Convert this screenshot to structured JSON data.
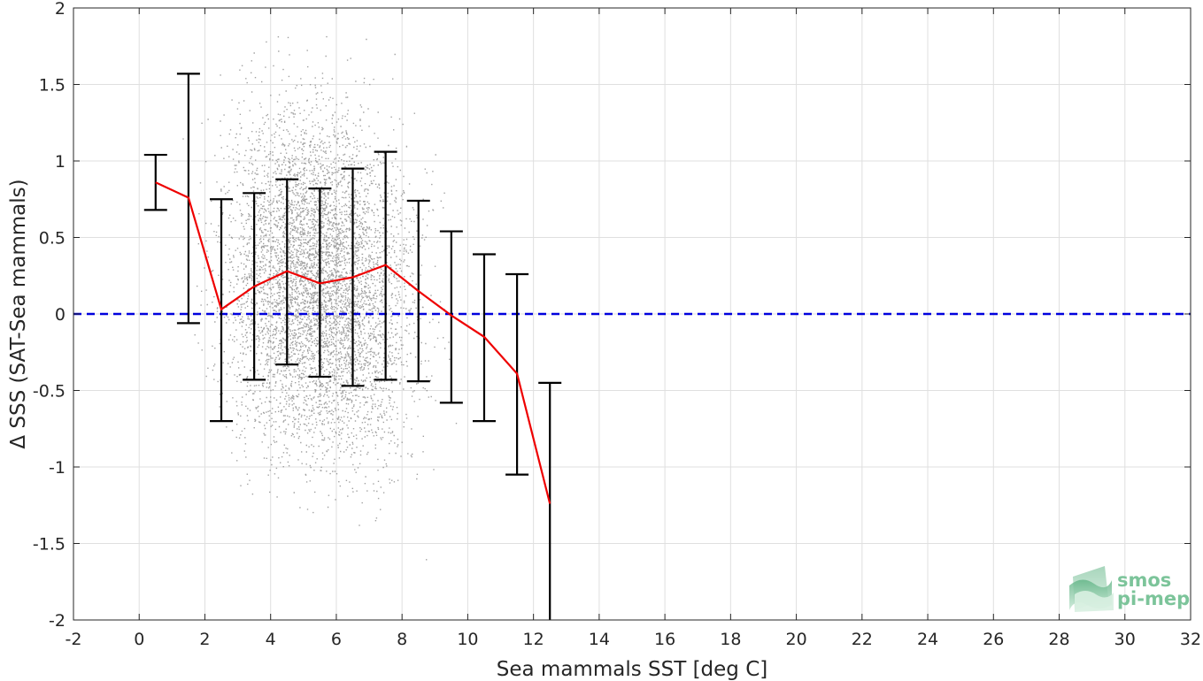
{
  "chart_data": {
    "type": "scatter",
    "title": "",
    "xlabel": "Sea mammals SST [deg C]",
    "ylabel": "Δ SSS (SAT-Sea mammals)",
    "xlim": [
      -2,
      32
    ],
    "ylim": [
      -2,
      2
    ],
    "xticks": [
      -2,
      0,
      2,
      4,
      6,
      8,
      10,
      12,
      14,
      16,
      18,
      20,
      22,
      24,
      26,
      28,
      30,
      32
    ],
    "yticks": [
      -2,
      -1.5,
      -1,
      -0.5,
      0,
      0.5,
      1,
      1.5,
      2
    ],
    "grid": true,
    "reference_line": {
      "y": 0,
      "style": "dashed",
      "color": "#0000dd"
    },
    "scatter": {
      "color": "#808080",
      "description_range_x": [
        0.5,
        12.5
      ],
      "cloud_center": {
        "x": 5.5,
        "y": 0.2
      },
      "cloud_spread": {
        "x": 2.3,
        "y": 0.65
      },
      "approx_count": 6000
    },
    "binned_mean": {
      "color": "#ee0000",
      "x": [
        0.5,
        1.5,
        2.5,
        3.5,
        4.5,
        5.5,
        6.5,
        7.5,
        8.5,
        9.5,
        10.5,
        11.5,
        12.5
      ],
      "mean": [
        0.86,
        0.76,
        0.03,
        0.18,
        0.28,
        0.2,
        0.24,
        0.32,
        0.15,
        -0.01,
        -0.15,
        -0.39,
        -1.24
      ],
      "upper": [
        1.04,
        1.57,
        0.75,
        0.79,
        0.88,
        0.82,
        0.95,
        1.06,
        0.74,
        0.54,
        0.39,
        0.26,
        -0.45
      ],
      "lower": [
        0.68,
        -0.06,
        -0.7,
        -0.43,
        -0.33,
        -0.41,
        -0.47,
        -0.43,
        -0.44,
        -0.58,
        -0.7,
        -1.05,
        -2.03
      ]
    }
  },
  "logo": {
    "line1": "smos",
    "line2": "pi-mep",
    "color": "#7cc49a"
  }
}
